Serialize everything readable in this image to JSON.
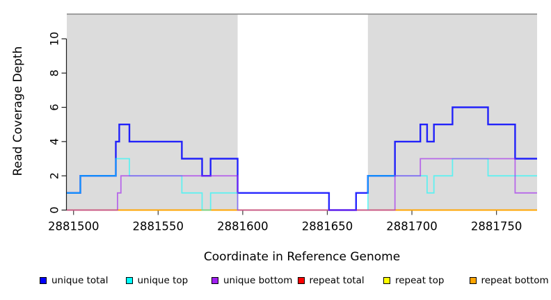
{
  "chart_data": {
    "type": "line",
    "step": true,
    "title": "",
    "xlabel": "Coordinate in Reference Genome",
    "ylabel": "Read Coverage Depth",
    "xlim": [
      2881496,
      2881774
    ],
    "ylim": [
      0,
      11.4
    ],
    "xticks": [
      2881500,
      2881550,
      2881600,
      2881650,
      2881700,
      2881750
    ],
    "yticks": [
      0,
      2,
      4,
      6,
      8,
      10
    ],
    "grid": false,
    "legend_position": "bottom",
    "shaded_regions": {
      "color": "#dcdcdc",
      "top_border_color": "#8a8a8a",
      "ranges": [
        [
          2881496,
          2881597
        ],
        [
          2881674,
          2881774
        ]
      ]
    },
    "series": [
      {
        "name": "unique total",
        "color": "#0000FF",
        "steps": [
          [
            2881496,
            1
          ],
          [
            2881504,
            2
          ],
          [
            2881525,
            4
          ],
          [
            2881527,
            5
          ],
          [
            2881533,
            4
          ],
          [
            2881564,
            3
          ],
          [
            2881576,
            2
          ],
          [
            2881581,
            3
          ],
          [
            2881597,
            1
          ],
          [
            2881651,
            0
          ],
          [
            2881667,
            1
          ],
          [
            2881674,
            2
          ],
          [
            2881690,
            4
          ],
          [
            2881705,
            5
          ],
          [
            2881709,
            4
          ],
          [
            2881713,
            5
          ],
          [
            2881724,
            6
          ],
          [
            2881745,
            5
          ],
          [
            2881761,
            3
          ],
          [
            2881774,
            3
          ]
        ]
      },
      {
        "name": "unique top",
        "color": "#00FFFF",
        "steps": [
          [
            2881496,
            1
          ],
          [
            2881504,
            2
          ],
          [
            2881525,
            3
          ],
          [
            2881533,
            2
          ],
          [
            2881564,
            1
          ],
          [
            2881576,
            0
          ],
          [
            2881581,
            1
          ],
          [
            2881597,
            0
          ],
          [
            2881674,
            2
          ],
          [
            2881709,
            1
          ],
          [
            2881713,
            2
          ],
          [
            2881724,
            3
          ],
          [
            2881745,
            2
          ],
          [
            2881774,
            2
          ]
        ]
      },
      {
        "name": "unique bottom",
        "color": "#A020F0",
        "steps": [
          [
            2881496,
            0
          ],
          [
            2881526,
            1
          ],
          [
            2881528,
            2
          ],
          [
            2881597,
            0
          ],
          [
            2881690,
            2
          ],
          [
            2881705,
            3
          ],
          [
            2881761,
            1
          ],
          [
            2881774,
            1
          ]
        ]
      },
      {
        "name": "repeat total",
        "color": "#FF0000",
        "steps": [
          [
            2881496,
            0
          ],
          [
            2881774,
            0
          ]
        ]
      },
      {
        "name": "repeat top",
        "color": "#FFFF00",
        "steps": [
          [
            2881496,
            0
          ],
          [
            2881774,
            0
          ]
        ]
      },
      {
        "name": "repeat bottom",
        "color": "#FFA500",
        "steps": [
          [
            2881496,
            0
          ],
          [
            2881774,
            0
          ]
        ]
      }
    ]
  }
}
